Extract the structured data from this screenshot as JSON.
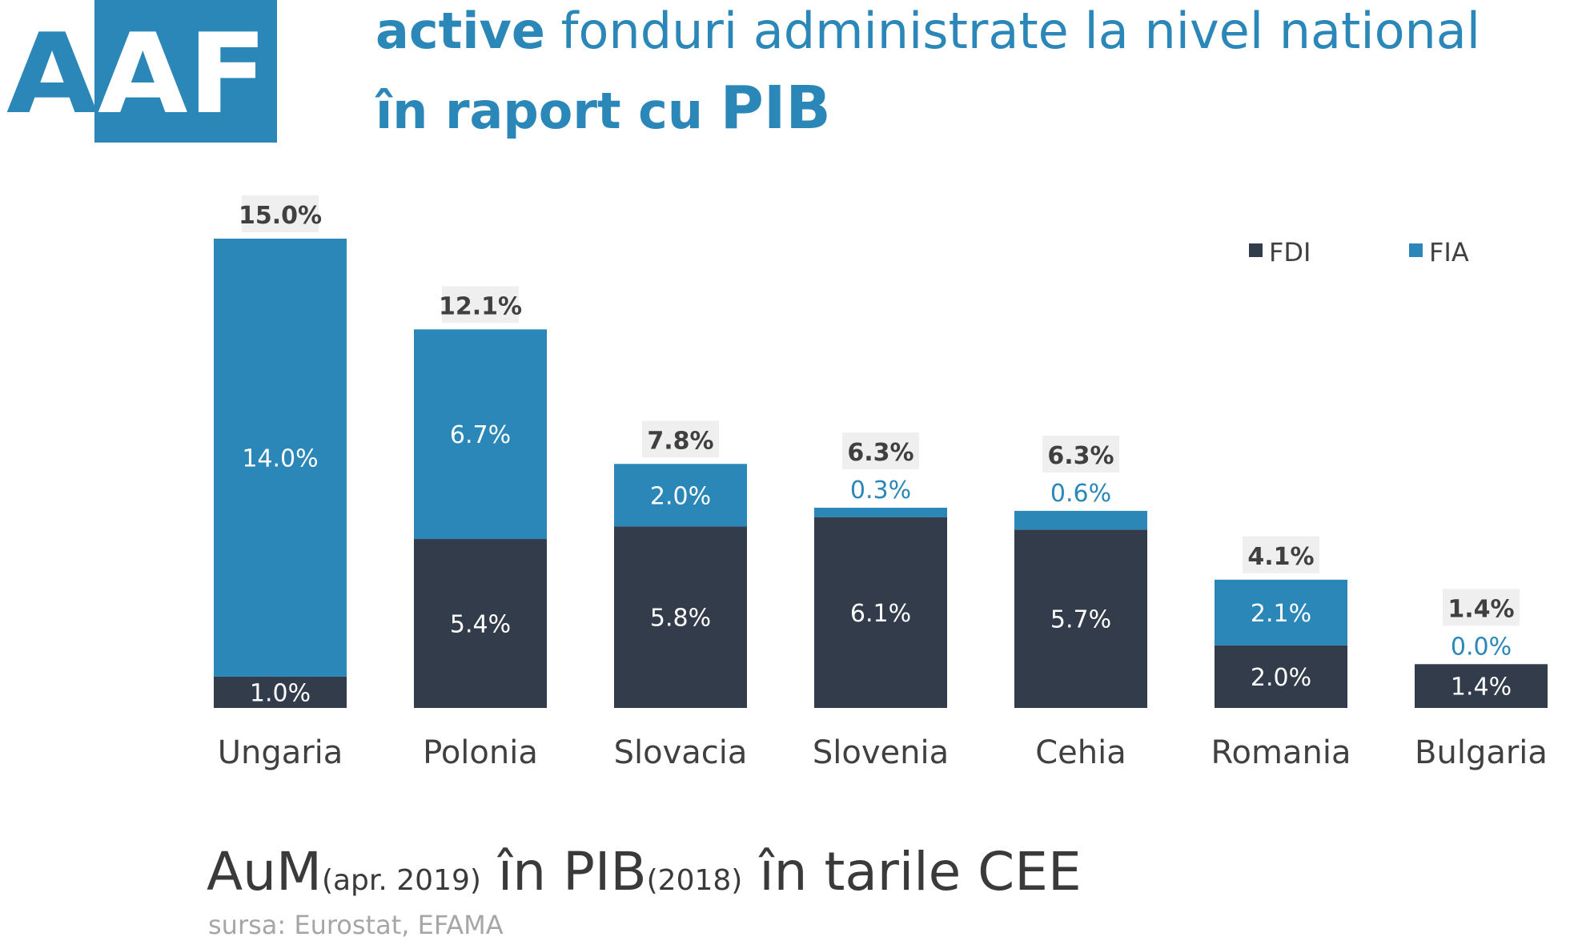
{
  "logo": {
    "text": "AAF"
  },
  "title": {
    "line1_bold": "active",
    "line1_rest": " fonduri administrate la nivel national",
    "line2_bold": "în raport cu ",
    "line2_big": "PIB"
  },
  "colors": {
    "FDI": "#323c4b",
    "FIA": "#2a87b8",
    "total_label_bg": "#efefef"
  },
  "chart_data": {
    "type": "bar",
    "stacked": true,
    "categories": [
      "Ungaria",
      "Polonia",
      "Slovacia",
      "Slovenia",
      "Cehia",
      "Romania",
      "Bulgaria"
    ],
    "series": [
      {
        "name": "FDI",
        "values": [
          1.0,
          5.4,
          5.8,
          6.1,
          5.7,
          2.0,
          1.4
        ],
        "labels": [
          "1.0%",
          "5.4%",
          "5.8%",
          "6.1%",
          "5.7%",
          "2.0%",
          "1.4%"
        ]
      },
      {
        "name": "FIA",
        "values": [
          14.0,
          6.7,
          2.0,
          0.3,
          0.6,
          2.1,
          0.0
        ],
        "labels": [
          "14.0%",
          "6.7%",
          "2.0%",
          "0.3%",
          "0.6%",
          "2.1%",
          "0.0%"
        ]
      }
    ],
    "totals": [
      15.0,
      12.1,
      7.8,
      6.3,
      6.3,
      4.1,
      1.4
    ],
    "total_labels": [
      "15.0%",
      "12.1%",
      "7.8%",
      "6.3%",
      "6.3%",
      "4.1%",
      "1.4%"
    ],
    "legend_position": "top-right",
    "grid": false,
    "ylim": [
      0,
      15.0
    ]
  },
  "caption": {
    "part1": "AuM",
    "part2": "(apr. 2019)",
    "part3": " în PIB",
    "part4": "(2018)",
    "part5": " în tarile CEE"
  },
  "source": "sursa: Eurostat, EFAMA"
}
